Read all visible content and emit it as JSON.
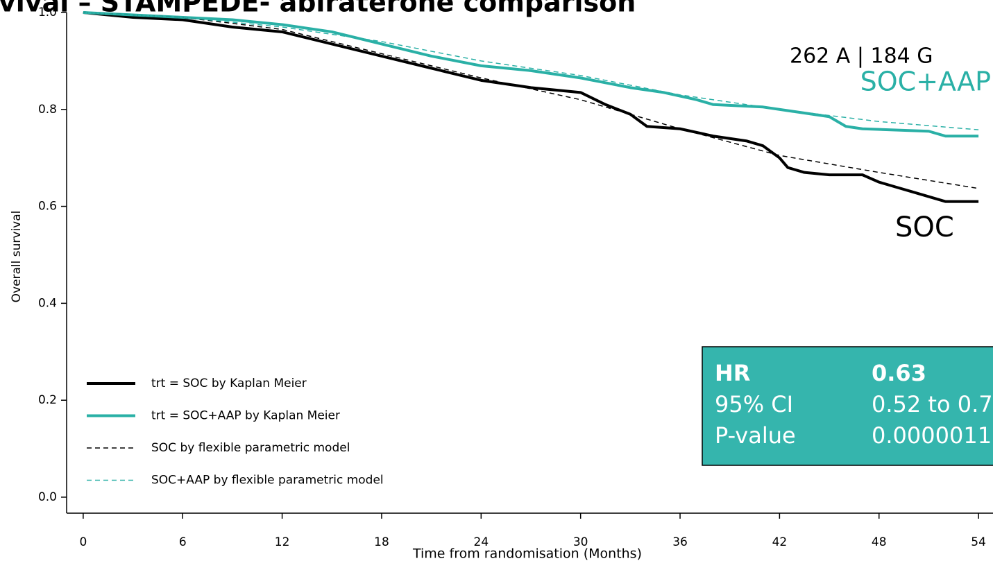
{
  "chart_data": {
    "type": "line",
    "title": "vival – STAMPEDE- abiraterone comparison",
    "xlabel": "Time from randomisation (Months)",
    "ylabel": "Overall survival",
    "xlim": [
      -1,
      55
    ],
    "ylim": [
      -0.033,
      1.0
    ],
    "xticks": [
      0,
      6,
      12,
      18,
      24,
      30,
      36,
      42,
      48,
      54
    ],
    "yticks": [
      {
        "value": 0,
        "label": "0.0"
      },
      0.2,
      0.4,
      0.6,
      0.8,
      {
        "value": 1,
        "label": "1.0"
      }
    ],
    "series": [
      {
        "name": "trt = SOC by Kaplan Meier",
        "color": "#000000",
        "style": "solid",
        "x": [
          0,
          3,
          6,
          9,
          12,
          15,
          18,
          21,
          24,
          27,
          30,
          31.5,
          33,
          34,
          36,
          38,
          40,
          41,
          42,
          42.5,
          43.5,
          45,
          47,
          48,
          49,
          50,
          51,
          52,
          54
        ],
        "values": [
          1.0,
          0.99,
          0.985,
          0.97,
          0.96,
          0.935,
          0.91,
          0.885,
          0.86,
          0.845,
          0.835,
          0.81,
          0.79,
          0.765,
          0.76,
          0.745,
          0.735,
          0.725,
          0.7,
          0.68,
          0.67,
          0.665,
          0.665,
          0.65,
          0.64,
          0.63,
          0.62,
          0.61,
          0.61
        ]
      },
      {
        "name": "trt = SOC+AAP by Kaplan Meier",
        "color": "#2ab0a6",
        "style": "solid",
        "x": [
          0,
          3,
          6,
          9,
          12,
          15,
          18,
          21,
          24,
          27,
          30,
          33,
          35,
          37,
          38,
          41,
          43,
          45,
          46,
          47,
          51,
          52,
          54
        ],
        "values": [
          1.0,
          0.995,
          0.99,
          0.985,
          0.975,
          0.96,
          0.935,
          0.91,
          0.89,
          0.88,
          0.865,
          0.845,
          0.835,
          0.82,
          0.81,
          0.805,
          0.795,
          0.785,
          0.765,
          0.76,
          0.755,
          0.745,
          0.745
        ]
      },
      {
        "name": "SOC by flexible parametric model",
        "color": "#000000",
        "style": "dashed",
        "x": [
          0,
          6,
          12,
          18,
          24,
          30,
          36,
          42,
          48,
          54
        ],
        "values": [
          1.0,
          0.99,
          0.965,
          0.915,
          0.865,
          0.82,
          0.76,
          0.705,
          0.67,
          0.637
        ]
      },
      {
        "name": "SOC+AAP by flexible parametric model",
        "color": "#2ab0a6",
        "style": "dashed",
        "x": [
          0,
          6,
          12,
          18,
          24,
          30,
          36,
          42,
          48,
          54
        ],
        "values": [
          1.0,
          0.99,
          0.97,
          0.94,
          0.9,
          0.87,
          0.83,
          0.8,
          0.775,
          0.758
        ]
      }
    ],
    "annotations": [
      {
        "text": "262 A | 184 G",
        "color": "#000000"
      },
      {
        "text": "SOC+AAP",
        "color": "#2ab0a6"
      },
      {
        "text": "SOC",
        "color": "#000000"
      }
    ],
    "stats_box": {
      "color": "#35b5ad",
      "rows": [
        [
          "HR",
          "0.63"
        ],
        [
          "95% CI",
          "0.52 to 0.7"
        ],
        [
          "P-value",
          "0.0000011"
        ]
      ]
    }
  }
}
